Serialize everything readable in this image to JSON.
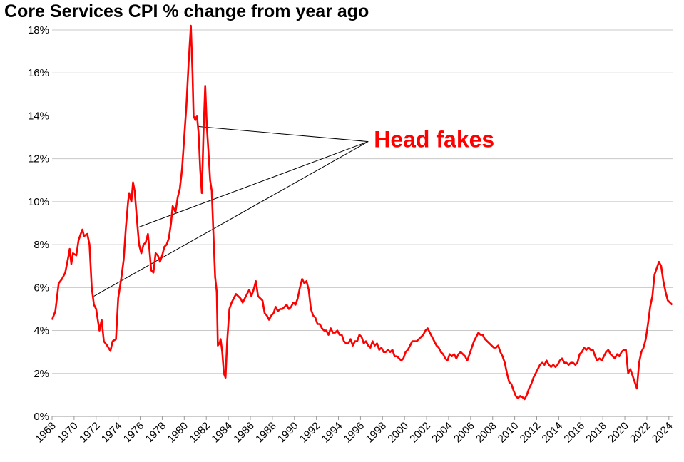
{
  "chart_data": {
    "type": "line",
    "title": "Core Services CPI % change from year ago",
    "xlabel": "",
    "ylabel": "",
    "xlim": [
      1968,
      2024.4
    ],
    "ylim": [
      0,
      18
    ],
    "x_ticks": [
      "1968",
      "1970",
      "1972",
      "1974",
      "1976",
      "1978",
      "1980",
      "1982",
      "1984",
      "1986",
      "1988",
      "1990",
      "1992",
      "1994",
      "1996",
      "1998",
      "2000",
      "2002",
      "2004",
      "2006",
      "2008",
      "2010",
      "2012",
      "2014",
      "2016",
      "2018",
      "2020",
      "2022",
      "2024"
    ],
    "y_ticks": [
      "0%",
      "2%",
      "4%",
      "6%",
      "8%",
      "10%",
      "12%",
      "14%",
      "16%",
      "18%"
    ],
    "grid": "horizontal",
    "line_color": "#ff0000",
    "series": [
      {
        "points": [
          [
            1968.0,
            4.5
          ],
          [
            1968.3,
            4.9
          ],
          [
            1968.6,
            6.2
          ],
          [
            1968.9,
            6.4
          ],
          [
            1969.2,
            6.7
          ],
          [
            1969.5,
            7.5
          ],
          [
            1969.6,
            7.8
          ],
          [
            1969.75,
            7.1
          ],
          [
            1969.9,
            7.6
          ],
          [
            1970.2,
            7.5
          ],
          [
            1970.4,
            8.2
          ],
          [
            1970.6,
            8.5
          ],
          [
            1970.75,
            8.7
          ],
          [
            1970.9,
            8.4
          ],
          [
            1971.2,
            8.5
          ],
          [
            1971.4,
            8.0
          ],
          [
            1971.6,
            6.0
          ],
          [
            1971.8,
            5.2
          ],
          [
            1972.0,
            5.0
          ],
          [
            1972.3,
            4.0
          ],
          [
            1972.5,
            4.5
          ],
          [
            1972.7,
            3.5
          ],
          [
            1973.0,
            3.3
          ],
          [
            1973.3,
            3.05
          ],
          [
            1973.5,
            3.5
          ],
          [
            1973.8,
            3.6
          ],
          [
            1974.0,
            5.5
          ],
          [
            1974.3,
            6.5
          ],
          [
            1974.5,
            7.3
          ],
          [
            1974.7,
            8.8
          ],
          [
            1974.9,
            10.0
          ],
          [
            1975.0,
            10.4
          ],
          [
            1975.2,
            10.0
          ],
          [
            1975.35,
            10.9
          ],
          [
            1975.5,
            10.5
          ],
          [
            1975.7,
            9.2
          ],
          [
            1975.9,
            8.0
          ],
          [
            1976.1,
            7.6
          ],
          [
            1976.3,
            8.0
          ],
          [
            1976.5,
            8.1
          ],
          [
            1976.7,
            8.5
          ],
          [
            1976.85,
            7.7
          ],
          [
            1977.0,
            6.8
          ],
          [
            1977.2,
            6.7
          ],
          [
            1977.4,
            7.6
          ],
          [
            1977.6,
            7.5
          ],
          [
            1977.8,
            7.2
          ],
          [
            1978.0,
            7.5
          ],
          [
            1978.2,
            7.9
          ],
          [
            1978.4,
            8.0
          ],
          [
            1978.6,
            8.3
          ],
          [
            1978.8,
            9.0
          ],
          [
            1978.95,
            9.8
          ],
          [
            1979.2,
            9.5
          ],
          [
            1979.4,
            10.2
          ],
          [
            1979.6,
            10.6
          ],
          [
            1979.8,
            11.5
          ],
          [
            1980.0,
            13.0
          ],
          [
            1980.2,
            14.5
          ],
          [
            1980.4,
            16.5
          ],
          [
            1980.6,
            18.2
          ],
          [
            1980.75,
            16.0
          ],
          [
            1980.85,
            14.0
          ],
          [
            1981.0,
            13.8
          ],
          [
            1981.15,
            14.0
          ],
          [
            1981.3,
            13.2
          ],
          [
            1981.45,
            11.5
          ],
          [
            1981.6,
            10.4
          ],
          [
            1981.75,
            13.2
          ],
          [
            1981.9,
            15.4
          ],
          [
            1982.05,
            13.5
          ],
          [
            1982.2,
            12.3
          ],
          [
            1982.35,
            11.0
          ],
          [
            1982.5,
            10.5
          ],
          [
            1982.65,
            8.5
          ],
          [
            1982.8,
            6.5
          ],
          [
            1982.95,
            5.8
          ],
          [
            1983.05,
            3.3
          ],
          [
            1983.2,
            3.4
          ],
          [
            1983.3,
            3.6
          ],
          [
            1983.45,
            3.0
          ],
          [
            1983.6,
            2.0
          ],
          [
            1983.75,
            1.8
          ],
          [
            1983.9,
            3.5
          ],
          [
            1984.1,
            5.0
          ],
          [
            1984.3,
            5.3
          ],
          [
            1984.5,
            5.5
          ],
          [
            1984.7,
            5.7
          ],
          [
            1984.9,
            5.6
          ],
          [
            1985.1,
            5.5
          ],
          [
            1985.3,
            5.3
          ],
          [
            1985.5,
            5.5
          ],
          [
            1985.7,
            5.7
          ],
          [
            1985.9,
            5.9
          ],
          [
            1986.1,
            5.6
          ],
          [
            1986.3,
            5.9
          ],
          [
            1986.5,
            6.3
          ],
          [
            1986.7,
            5.6
          ],
          [
            1986.9,
            5.5
          ],
          [
            1987.1,
            5.4
          ],
          [
            1987.3,
            4.8
          ],
          [
            1987.5,
            4.7
          ],
          [
            1987.7,
            4.5
          ],
          [
            1987.9,
            4.7
          ],
          [
            1988.1,
            4.8
          ],
          [
            1988.3,
            5.1
          ],
          [
            1988.5,
            4.9
          ],
          [
            1988.7,
            5.0
          ],
          [
            1988.9,
            5.0
          ],
          [
            1989.1,
            5.1
          ],
          [
            1989.3,
            5.2
          ],
          [
            1989.5,
            5.0
          ],
          [
            1989.7,
            5.1
          ],
          [
            1989.9,
            5.3
          ],
          [
            1990.1,
            5.2
          ],
          [
            1990.3,
            5.5
          ],
          [
            1990.5,
            6.0
          ],
          [
            1990.7,
            6.4
          ],
          [
            1990.9,
            6.2
          ],
          [
            1991.1,
            6.3
          ],
          [
            1991.3,
            5.9
          ],
          [
            1991.5,
            5.0
          ],
          [
            1991.7,
            4.7
          ],
          [
            1991.9,
            4.6
          ],
          [
            1992.1,
            4.3
          ],
          [
            1992.3,
            4.3
          ],
          [
            1992.5,
            4.1
          ],
          [
            1992.7,
            4.0
          ],
          [
            1992.9,
            4.0
          ],
          [
            1993.1,
            3.8
          ],
          [
            1993.3,
            4.1
          ],
          [
            1993.5,
            3.9
          ],
          [
            1993.7,
            3.9
          ],
          [
            1993.9,
            4.0
          ],
          [
            1994.1,
            3.8
          ],
          [
            1994.3,
            3.8
          ],
          [
            1994.5,
            3.5
          ],
          [
            1994.7,
            3.4
          ],
          [
            1994.9,
            3.4
          ],
          [
            1995.1,
            3.6
          ],
          [
            1995.3,
            3.3
          ],
          [
            1995.5,
            3.5
          ],
          [
            1995.7,
            3.5
          ],
          [
            1995.9,
            3.8
          ],
          [
            1996.1,
            3.7
          ],
          [
            1996.3,
            3.4
          ],
          [
            1996.5,
            3.5
          ],
          [
            1996.7,
            3.3
          ],
          [
            1996.9,
            3.2
          ],
          [
            1997.1,
            3.5
          ],
          [
            1997.3,
            3.3
          ],
          [
            1997.5,
            3.4
          ],
          [
            1997.7,
            3.1
          ],
          [
            1997.9,
            3.2
          ],
          [
            1998.1,
            3.0
          ],
          [
            1998.3,
            3.0
          ],
          [
            1998.5,
            3.1
          ],
          [
            1998.7,
            3.0
          ],
          [
            1998.9,
            3.1
          ],
          [
            1999.1,
            2.8
          ],
          [
            1999.3,
            2.8
          ],
          [
            1999.5,
            2.7
          ],
          [
            1999.7,
            2.6
          ],
          [
            1999.9,
            2.7
          ],
          [
            2000.1,
            3.0
          ],
          [
            2000.3,
            3.1
          ],
          [
            2000.5,
            3.3
          ],
          [
            2000.7,
            3.5
          ],
          [
            2000.9,
            3.5
          ],
          [
            2001.1,
            3.5
          ],
          [
            2001.3,
            3.6
          ],
          [
            2001.5,
            3.7
          ],
          [
            2001.7,
            3.8
          ],
          [
            2001.9,
            4.0
          ],
          [
            2002.1,
            4.1
          ],
          [
            2002.3,
            3.9
          ],
          [
            2002.5,
            3.7
          ],
          [
            2002.7,
            3.5
          ],
          [
            2002.9,
            3.3
          ],
          [
            2003.1,
            3.2
          ],
          [
            2003.3,
            3.0
          ],
          [
            2003.5,
            2.9
          ],
          [
            2003.7,
            2.7
          ],
          [
            2003.9,
            2.6
          ],
          [
            2004.1,
            2.9
          ],
          [
            2004.3,
            2.8
          ],
          [
            2004.5,
            2.9
          ],
          [
            2004.7,
            2.7
          ],
          [
            2004.9,
            2.9
          ],
          [
            2005.1,
            3.0
          ],
          [
            2005.3,
            2.9
          ],
          [
            2005.5,
            2.8
          ],
          [
            2005.7,
            2.6
          ],
          [
            2005.9,
            2.9
          ],
          [
            2006.1,
            3.2
          ],
          [
            2006.3,
            3.5
          ],
          [
            2006.5,
            3.7
          ],
          [
            2006.7,
            3.9
          ],
          [
            2006.9,
            3.8
          ],
          [
            2007.1,
            3.8
          ],
          [
            2007.3,
            3.6
          ],
          [
            2007.5,
            3.5
          ],
          [
            2007.7,
            3.4
          ],
          [
            2007.9,
            3.3
          ],
          [
            2008.1,
            3.2
          ],
          [
            2008.3,
            3.2
          ],
          [
            2008.5,
            3.3
          ],
          [
            2008.7,
            3.0
          ],
          [
            2008.9,
            2.8
          ],
          [
            2009.1,
            2.5
          ],
          [
            2009.3,
            2.0
          ],
          [
            2009.5,
            1.6
          ],
          [
            2009.7,
            1.5
          ],
          [
            2009.9,
            1.2
          ],
          [
            2010.1,
            0.95
          ],
          [
            2010.3,
            0.85
          ],
          [
            2010.5,
            0.95
          ],
          [
            2010.7,
            0.9
          ],
          [
            2010.9,
            0.8
          ],
          [
            2011.1,
            1.0
          ],
          [
            2011.3,
            1.3
          ],
          [
            2011.5,
            1.5
          ],
          [
            2011.7,
            1.8
          ],
          [
            2011.9,
            2.0
          ],
          [
            2012.1,
            2.2
          ],
          [
            2012.3,
            2.4
          ],
          [
            2012.5,
            2.5
          ],
          [
            2012.7,
            2.4
          ],
          [
            2012.9,
            2.6
          ],
          [
            2013.1,
            2.4
          ],
          [
            2013.3,
            2.3
          ],
          [
            2013.5,
            2.4
          ],
          [
            2013.7,
            2.3
          ],
          [
            2013.9,
            2.4
          ],
          [
            2014.1,
            2.6
          ],
          [
            2014.3,
            2.7
          ],
          [
            2014.5,
            2.5
          ],
          [
            2014.7,
            2.5
          ],
          [
            2014.9,
            2.4
          ],
          [
            2015.1,
            2.5
          ],
          [
            2015.3,
            2.5
          ],
          [
            2015.5,
            2.4
          ],
          [
            2015.7,
            2.5
          ],
          [
            2015.9,
            2.9
          ],
          [
            2016.1,
            3.0
          ],
          [
            2016.3,
            3.2
          ],
          [
            2016.5,
            3.1
          ],
          [
            2016.7,
            3.2
          ],
          [
            2016.9,
            3.1
          ],
          [
            2017.1,
            3.1
          ],
          [
            2017.3,
            2.8
          ],
          [
            2017.5,
            2.6
          ],
          [
            2017.7,
            2.7
          ],
          [
            2017.9,
            2.6
          ],
          [
            2018.1,
            2.8
          ],
          [
            2018.3,
            3.0
          ],
          [
            2018.5,
            3.1
          ],
          [
            2018.7,
            2.9
          ],
          [
            2018.9,
            2.8
          ],
          [
            2019.1,
            2.7
          ],
          [
            2019.3,
            2.9
          ],
          [
            2019.5,
            2.8
          ],
          [
            2019.7,
            3.0
          ],
          [
            2019.9,
            3.1
          ],
          [
            2020.1,
            3.1
          ],
          [
            2020.3,
            2.0
          ],
          [
            2020.5,
            2.2
          ],
          [
            2020.7,
            1.9
          ],
          [
            2020.9,
            1.6
          ],
          [
            2021.1,
            1.3
          ],
          [
            2021.3,
            2.5
          ],
          [
            2021.5,
            3.0
          ],
          [
            2021.7,
            3.2
          ],
          [
            2021.9,
            3.6
          ],
          [
            2022.1,
            4.3
          ],
          [
            2022.3,
            5.1
          ],
          [
            2022.5,
            5.6
          ],
          [
            2022.7,
            6.6
          ],
          [
            2022.9,
            6.9
          ],
          [
            2023.1,
            7.2
          ],
          [
            2023.3,
            7.0
          ],
          [
            2023.5,
            6.3
          ],
          [
            2023.7,
            5.8
          ],
          [
            2023.9,
            5.4
          ],
          [
            2024.1,
            5.3
          ],
          [
            2024.3,
            5.2
          ]
        ]
      }
    ],
    "annotations": [
      {
        "text": "Head fakes",
        "color": "#ff0000",
        "anchor": [
          1996.7,
          12.8
        ],
        "pointers": [
          [
            1981.3,
            13.5
          ],
          [
            1975.8,
            8.8
          ],
          [
            1971.8,
            5.6
          ]
        ]
      }
    ]
  }
}
